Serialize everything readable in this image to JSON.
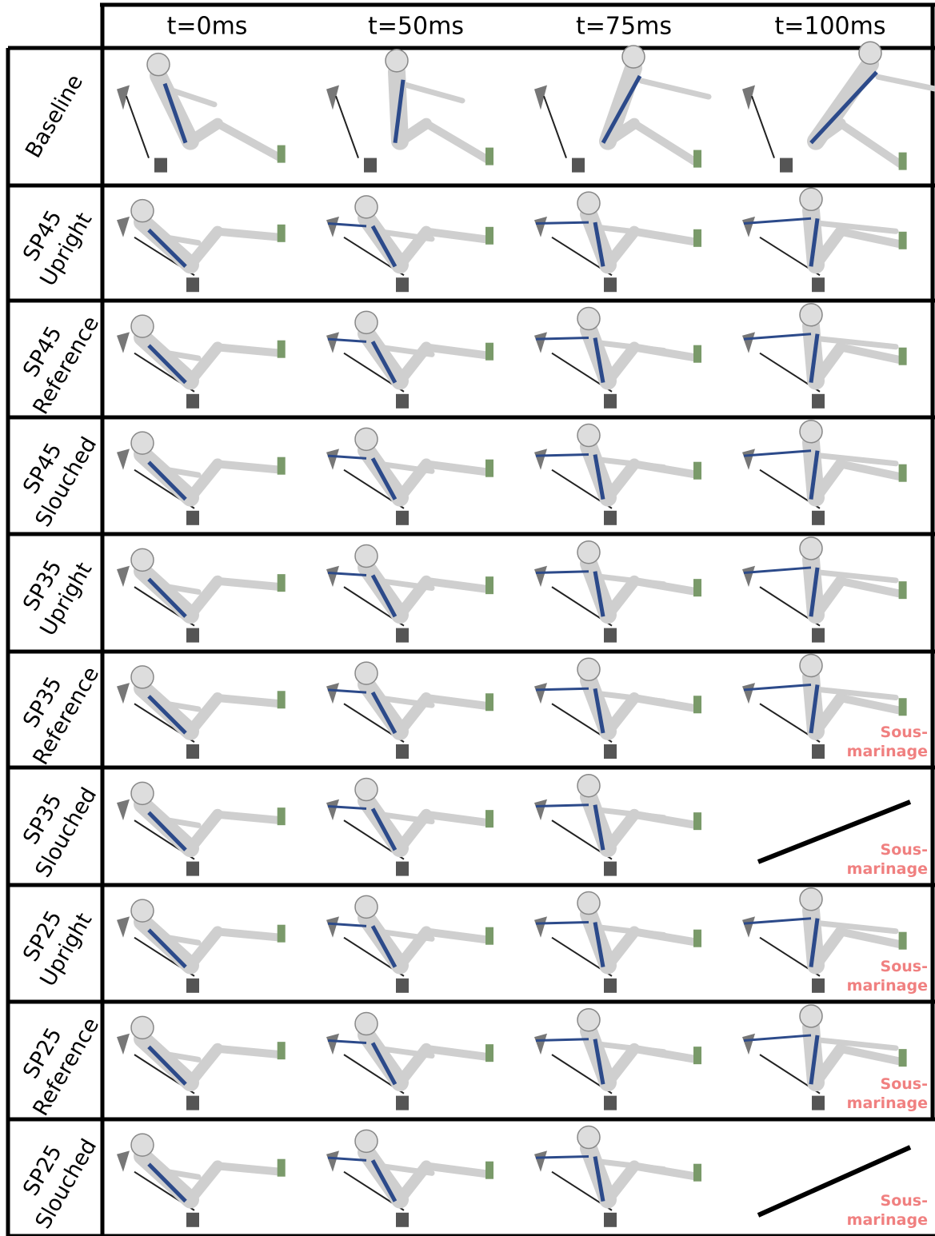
{
  "header": {
    "columns": [
      "t=0ms",
      "t=50ms",
      "t=75ms",
      "t=100ms"
    ]
  },
  "rows": [
    {
      "label": [
        "Baseline"
      ]
    },
    {
      "label": [
        "SP45",
        "Upright"
      ]
    },
    {
      "label": [
        "SP45",
        "Reference"
      ]
    },
    {
      "label": [
        "SP45",
        "Slouched"
      ]
    },
    {
      "label": [
        "SP35",
        "Upright"
      ]
    },
    {
      "label": [
        "SP35",
        "Reference"
      ],
      "note": [
        "Sous-",
        "marinage"
      ]
    },
    {
      "label": [
        "SP35",
        "Slouched"
      ],
      "note": [
        "Sous-",
        "marinage"
      ]
    },
    {
      "label": [
        "SP25",
        "Upright"
      ],
      "note": [
        "Sous-",
        "marinage"
      ]
    },
    {
      "label": [
        "SP25",
        "Reference"
      ],
      "note": [
        "Sous-",
        "marinage"
      ]
    },
    {
      "label": [
        "SP25",
        "Slouched"
      ],
      "note": [
        "Sous-",
        "marinage"
      ]
    }
  ]
}
